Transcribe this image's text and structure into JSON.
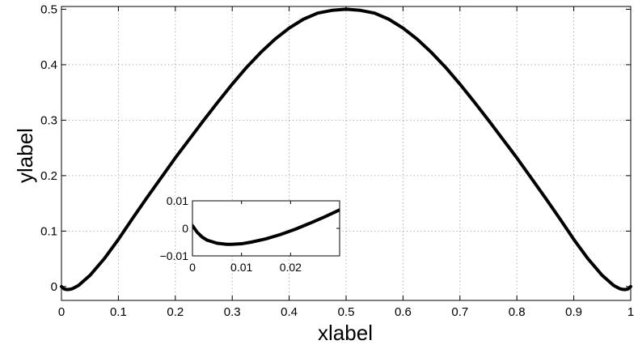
{
  "chart_data": [
    {
      "type": "line",
      "title": "",
      "xlabel": "xlabel",
      "ylabel": "ylabel",
      "xlim": [
        0,
        1
      ],
      "ylim": [
        -0.025,
        0.505
      ],
      "grid": true,
      "x_ticks": [
        0,
        0.1,
        0.2,
        0.3,
        0.4,
        0.5,
        0.6,
        0.7,
        0.8,
        0.9,
        1
      ],
      "x_tick_labels": [
        "0",
        "0.1",
        "0.2",
        "0.3",
        "0.4",
        "0.5",
        "0.6",
        "0.7",
        "0.8",
        "0.9",
        "1"
      ],
      "y_ticks": [
        0,
        0.1,
        0.2,
        0.3,
        0.4,
        0.5
      ],
      "y_tick_labels": [
        "0",
        "0.1",
        "0.2",
        "0.3",
        "0.4",
        "0.5"
      ],
      "series": [
        {
          "x": [
            0,
            0.005,
            0.01,
            0.015,
            0.02,
            0.03,
            0.05,
            0.075,
            0.1,
            0.125,
            0.15,
            0.175,
            0.2,
            0.225,
            0.25,
            0.275,
            0.3,
            0.325,
            0.35,
            0.375,
            0.4,
            0.425,
            0.45,
            0.475,
            0.5,
            0.525,
            0.55,
            0.575,
            0.6,
            0.625,
            0.65,
            0.675,
            0.7,
            0.725,
            0.75,
            0.775,
            0.8,
            0.825,
            0.85,
            0.875,
            0.9,
            0.925,
            0.95,
            0.97,
            0.98,
            0.985,
            0.99,
            0.995,
            1
          ],
          "y": [
            0,
            -0.0045,
            -0.0055,
            -0.005,
            -0.0035,
            0.002,
            0.02,
            0.05,
            0.085,
            0.123,
            0.16,
            0.196,
            0.232,
            0.266,
            0.3,
            0.333,
            0.365,
            0.395,
            0.422,
            0.446,
            0.466,
            0.482,
            0.493,
            0.498,
            0.5,
            0.498,
            0.493,
            0.482,
            0.466,
            0.446,
            0.422,
            0.395,
            0.365,
            0.333,
            0.3,
            0.266,
            0.232,
            0.196,
            0.16,
            0.123,
            0.085,
            0.05,
            0.02,
            0.002,
            -0.0035,
            -0.005,
            -0.0055,
            -0.0045,
            0
          ]
        }
      ]
    },
    {
      "type": "line",
      "title": "",
      "xlabel": "",
      "ylabel": "",
      "xlim": [
        0,
        0.03
      ],
      "ylim": [
        -0.01,
        0.01
      ],
      "grid": false,
      "x_ticks": [
        0,
        0.01,
        0.02
      ],
      "x_tick_labels": [
        "0",
        "0.01",
        "0.02"
      ],
      "y_ticks": [
        -0.01,
        0,
        0.01
      ],
      "y_tick_labels": [
        "−0.01",
        "0",
        "0.01"
      ],
      "series": [
        {
          "x": [
            0,
            0.001,
            0.002,
            0.003,
            0.005,
            0.007,
            0.008,
            0.01,
            0.012,
            0.015,
            0.018,
            0.021,
            0.024,
            0.027,
            0.03
          ],
          "y": [
            0.001,
            -0.0015,
            -0.0032,
            -0.0043,
            -0.0054,
            -0.0058,
            -0.0058,
            -0.0056,
            -0.005,
            -0.0038,
            -0.0022,
            -0.0003,
            0.0019,
            0.0042,
            0.0067
          ]
        }
      ]
    }
  ]
}
